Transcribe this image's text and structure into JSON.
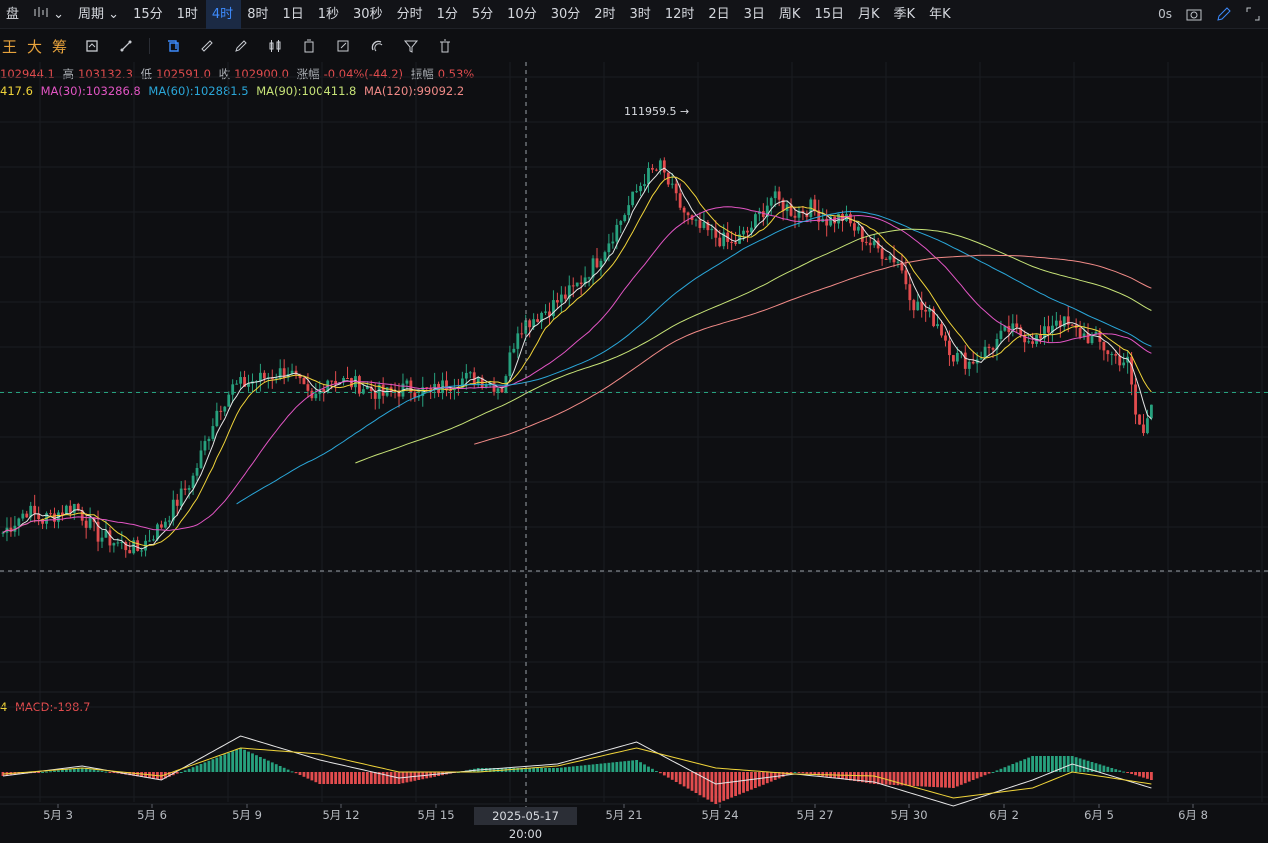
{
  "topbar": {
    "items": [
      "盘",
      "",
      "周期",
      "15分",
      "1时",
      "4时",
      "8时",
      "1日",
      "1秒",
      "30秒",
      "分时",
      "1分",
      "5分",
      "10分",
      "30分",
      "2时",
      "3时",
      "12时",
      "2日",
      "3日",
      "周K",
      "15日",
      "月K",
      "季K",
      "年K"
    ],
    "active_index": 5,
    "right_text": "0s"
  },
  "toolbar": {
    "text1": "王",
    "text2": "大",
    "text3": "筹"
  },
  "ohlc": {
    "open": "102944.1",
    "high_label": "高",
    "high": "103132.3",
    "low_label": "低",
    "low": "102591.0",
    "close_label": "收",
    "close": "102900.0",
    "change_label": "涨幅",
    "change": "-0.04%(-44.2)",
    "amp_label": "振幅",
    "amp": "0.53%"
  },
  "ma": {
    "ma_first": "417.6",
    "ma30": "MA(30):103286.8",
    "ma60": "MA(60):102881.5",
    "ma90": "MA(90):100411.8",
    "ma120": "MA(120):99092.2"
  },
  "macd": {
    "prefix": "4",
    "label": "MACD:-198.7"
  },
  "crosshair_label": "2025-05-17 20:00",
  "colors": {
    "up": "#27a17e",
    "down": "#e24c4e",
    "ma5": "#e6e6e6",
    "ma10": "#f0d43a",
    "ma30": "#e255c4",
    "ma60": "#2aa6d8",
    "ma90": "#c6e277",
    "ma120": "#f08a87"
  },
  "chart_data": {
    "type": "candlestick",
    "annotations": [
      {
        "label": "111959.5 →",
        "x": "2025-05-22 20:00",
        "y": 111959.5
      }
    ],
    "ylim": [
      93000,
      114000
    ],
    "current_price": 102900.0,
    "x_ticks": [
      "5月 3",
      "5月 6",
      "5月 9",
      "5月 12",
      "5月 15",
      "5月 21",
      "5月 24",
      "5月 27",
      "5月 30",
      "6月 2",
      "6月 5",
      "6月 8"
    ],
    "anchors": [
      [
        0,
        97300
      ],
      [
        6,
        98200
      ],
      [
        10,
        97800
      ],
      [
        18,
        98400
      ],
      [
        24,
        97200
      ],
      [
        30,
        96800
      ],
      [
        34,
        96600
      ],
      [
        40,
        97600
      ],
      [
        48,
        99500
      ],
      [
        54,
        102200
      ],
      [
        58,
        103100
      ],
      [
        66,
        103500
      ],
      [
        72,
        103800
      ],
      [
        78,
        102500
      ],
      [
        82,
        103500
      ],
      [
        90,
        103200
      ],
      [
        96,
        102800
      ],
      [
        102,
        103100
      ],
      [
        108,
        102900
      ],
      [
        114,
        103400
      ],
      [
        120,
        103500
      ],
      [
        126,
        103100
      ],
      [
        130,
        105500
      ],
      [
        138,
        106300
      ],
      [
        144,
        107000
      ],
      [
        150,
        108200
      ],
      [
        156,
        109800
      ],
      [
        162,
        111500
      ],
      [
        166,
        111900
      ],
      [
        170,
        110600
      ],
      [
        174,
        109600
      ],
      [
        178,
        109300
      ],
      [
        184,
        108800
      ],
      [
        188,
        109300
      ],
      [
        194,
        110700
      ],
      [
        200,
        110100
      ],
      [
        204,
        110300
      ],
      [
        208,
        109800
      ],
      [
        212,
        109900
      ],
      [
        220,
        108700
      ],
      [
        226,
        108200
      ],
      [
        230,
        106500
      ],
      [
        236,
        105700
      ],
      [
        240,
        104400
      ],
      [
        244,
        104100
      ],
      [
        250,
        104800
      ],
      [
        254,
        105400
      ],
      [
        258,
        105200
      ],
      [
        262,
        105000
      ],
      [
        266,
        105900
      ],
      [
        270,
        105400
      ],
      [
        276,
        105000
      ],
      [
        280,
        104400
      ],
      [
        284,
        104100
      ],
      [
        286,
        102000
      ],
      [
        288,
        101200
      ],
      [
        290,
        102700
      ]
    ],
    "ma_series": [
      {
        "name": "MA(30)",
        "end": 103286.8
      },
      {
        "name": "MA(60)",
        "end": 102881.5
      },
      {
        "name": "MA(90)",
        "end": 100411.8
      },
      {
        "name": "MA(120)",
        "end": 99092.2
      }
    ],
    "macd": {
      "dif": [
        [
          0,
          -20
        ],
        [
          20,
          30
        ],
        [
          40,
          -40
        ],
        [
          60,
          180
        ],
        [
          80,
          60
        ],
        [
          100,
          -30
        ],
        [
          120,
          10
        ],
        [
          140,
          40
        ],
        [
          160,
          150
        ],
        [
          180,
          -60
        ],
        [
          200,
          -10
        ],
        [
          220,
          -50
        ],
        [
          240,
          -170
        ],
        [
          260,
          -40
        ],
        [
          270,
          40
        ],
        [
          290,
          -80
        ]
      ],
      "dea": [
        [
          0,
          -10
        ],
        [
          20,
          20
        ],
        [
          40,
          -20
        ],
        [
          60,
          120
        ],
        [
          80,
          90
        ],
        [
          100,
          0
        ],
        [
          120,
          0
        ],
        [
          140,
          30
        ],
        [
          160,
          120
        ],
        [
          180,
          20
        ],
        [
          200,
          -10
        ],
        [
          220,
          -20
        ],
        [
          240,
          -130
        ],
        [
          260,
          -80
        ],
        [
          270,
          0
        ],
        [
          290,
          -60
        ]
      ]
    }
  }
}
